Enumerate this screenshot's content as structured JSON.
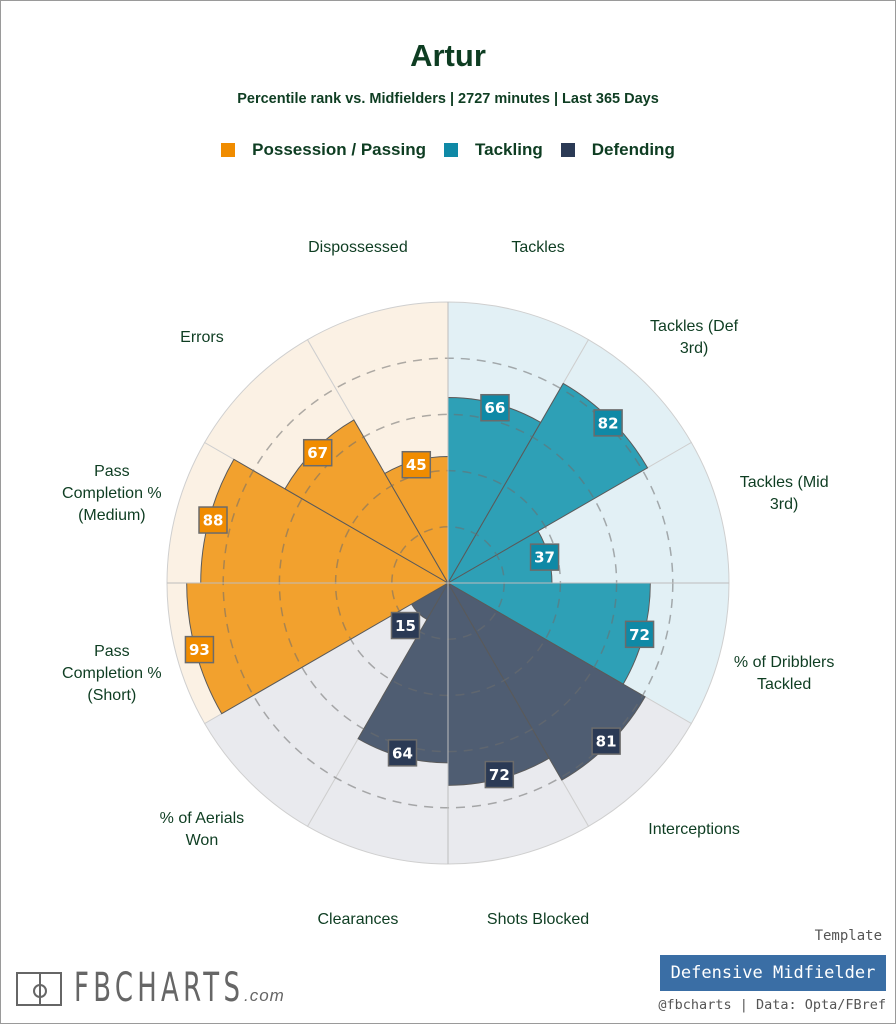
{
  "header": {
    "title": "Artur",
    "subtitle": "Percentile rank vs. Midfielders | 2727 minutes | Last 365 Days"
  },
  "legend": [
    {
      "label": "Possession / Passing",
      "color": "#f08c00"
    },
    {
      "label": "Tackling",
      "color": "#0f89a6"
    },
    {
      "label": "Defending",
      "color": "#2b3a55"
    }
  ],
  "footer": {
    "template_label": "Template",
    "template_value": "Defensive Midfielder",
    "credit": "@fbcharts | Data: Opta/FBref",
    "logo_text": "FBCHARTS",
    "logo_suffix": ".com"
  },
  "chart_data": {
    "type": "polar-bar",
    "title": "Artur",
    "subtitle": "Percentile rank vs. Midfielders | 2727 minutes | Last 365 Days",
    "range": [
      0,
      100
    ],
    "gridlines": [
      20,
      40,
      60,
      80
    ],
    "legend_position": "top",
    "groups": {
      "Possession / Passing": {
        "bar": "#f2a12e",
        "box": "#f08c00",
        "bg": "#fbf1e4"
      },
      "Tackling": {
        "bar": "#2ea0b6",
        "box": "#0f89a6",
        "bg": "#e2f0f5"
      },
      "Defending": {
        "bar": "#4f5d72",
        "box": "#2b3a55",
        "bg": "#e9eaee"
      }
    },
    "categories": [
      {
        "label": "Tackles",
        "lines": [
          "Tackles"
        ],
        "value": 66,
        "group": "Tackling"
      },
      {
        "label": "Tackles (Def 3rd)",
        "lines": [
          "Tackles (Def",
          "3rd)"
        ],
        "value": 82,
        "group": "Tackling"
      },
      {
        "label": "Tackles (Mid 3rd)",
        "lines": [
          "Tackles (Mid",
          "3rd)"
        ],
        "value": 37,
        "group": "Tackling"
      },
      {
        "label": "% of Dribblers Tackled",
        "lines": [
          "% of Dribblers",
          "Tackled"
        ],
        "value": 72,
        "group": "Tackling"
      },
      {
        "label": "Interceptions",
        "lines": [
          "Interceptions"
        ],
        "value": 81,
        "group": "Defending"
      },
      {
        "label": "Shots Blocked",
        "lines": [
          "Shots Blocked"
        ],
        "value": 72,
        "group": "Defending"
      },
      {
        "label": "Clearances",
        "lines": [
          "Clearances"
        ],
        "value": 64,
        "group": "Defending"
      },
      {
        "label": "% of Aerials Won",
        "lines": [
          "% of Aerials",
          "Won"
        ],
        "value": 15,
        "group": "Defending"
      },
      {
        "label": "Pass Completion % (Short)",
        "lines": [
          "Pass",
          "Completion %",
          "(Short)"
        ],
        "value": 93,
        "group": "Possession / Passing"
      },
      {
        "label": "Pass Completion % (Medium)",
        "lines": [
          "Pass",
          "Completion %",
          "(Medium)"
        ],
        "value": 88,
        "group": "Possession / Passing"
      },
      {
        "label": "Errors",
        "lines": [
          "Errors"
        ],
        "value": 67,
        "group": "Possession / Passing"
      },
      {
        "label": "Dispossessed",
        "lines": [
          "Dispossessed"
        ],
        "value": 45,
        "group": "Possession / Passing"
      }
    ]
  }
}
